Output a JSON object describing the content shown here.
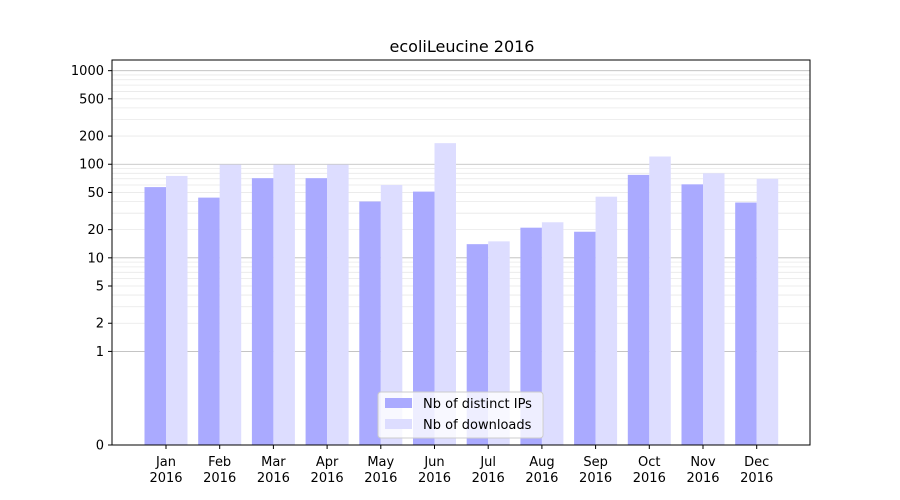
{
  "chart_data": {
    "type": "bar",
    "title": "ecoliLeucine 2016",
    "xlabel": "",
    "ylabel": "",
    "yscale": "symlog",
    "ylim": [
      0,
      1300
    ],
    "yticks": [
      0,
      1,
      2,
      5,
      10,
      20,
      50,
      100,
      200,
      500,
      1000
    ],
    "grid": true,
    "legend_position": "lower-center",
    "categories": [
      [
        "Jan",
        "2016"
      ],
      [
        "Feb",
        "2016"
      ],
      [
        "Mar",
        "2016"
      ],
      [
        "Apr",
        "2016"
      ],
      [
        "May",
        "2016"
      ],
      [
        "Jun",
        "2016"
      ],
      [
        "Jul",
        "2016"
      ],
      [
        "Aug",
        "2016"
      ],
      [
        "Sep",
        "2016"
      ],
      [
        "Oct",
        "2016"
      ],
      [
        "Nov",
        "2016"
      ],
      [
        "Dec",
        "2016"
      ]
    ],
    "series": [
      {
        "name": "Nb of distinct IPs",
        "color": "#aaaaff",
        "values": [
          57,
          44,
          71,
          71,
          40,
          51,
          14,
          21,
          19,
          77,
          61,
          39
        ]
      },
      {
        "name": "Nb of downloads",
        "color": "#ddddff",
        "values": [
          75,
          99,
          99,
          99,
          60,
          168,
          15,
          24,
          45,
          121,
          80,
          70
        ]
      }
    ]
  }
}
